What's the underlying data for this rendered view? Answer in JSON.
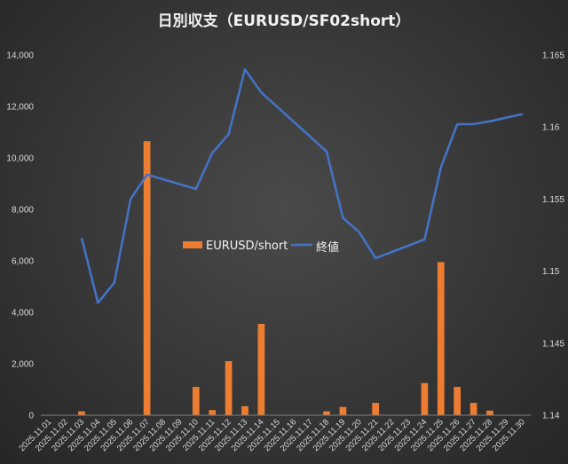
{
  "chart_data": {
    "type": "bar+line",
    "title": "日別収支（EURUSD/SF02short）",
    "categories": [
      "2025.11.01",
      "2025.11.02",
      "2025.11.03",
      "2025.11.04",
      "2025.11.05",
      "2025.11.06",
      "2025.11.07",
      "2025.11.08",
      "2025.11.09",
      "2025.11.10",
      "2025.11.11",
      "2025.11.12",
      "2025.11.13",
      "2025.11.14",
      "2025.11.15",
      "2025.11.16",
      "2025.11.17",
      "2025.11.18",
      "2025.11.19",
      "2025.11.20",
      "2025.11.21",
      "2025.11.22",
      "2025.11.23",
      "2025.11.24",
      "2025.11.25",
      "2025.11.26",
      "2025.11.27",
      "2025.11.28",
      "2025.11.29",
      "2025.11.30"
    ],
    "series": [
      {
        "name": "EURUSD/short",
        "type": "bar",
        "axis": "left",
        "color": "#ed7d31",
        "values": [
          0,
          0,
          150,
          0,
          0,
          0,
          10650,
          0,
          0,
          1100,
          200,
          2100,
          350,
          3550,
          0,
          0,
          0,
          150,
          320,
          0,
          480,
          0,
          0,
          1250,
          5950,
          1100,
          480,
          180,
          0,
          0
        ]
      },
      {
        "name": "終値",
        "type": "line",
        "axis": "right",
        "color": "#4472c4",
        "values": [
          null,
          null,
          1.1523,
          1.1478,
          1.1492,
          1.155,
          1.1567,
          null,
          null,
          1.1557,
          1.1582,
          1.1595,
          1.164,
          1.1624,
          null,
          null,
          null,
          1.1583,
          1.1537,
          1.1527,
          1.1509,
          null,
          null,
          1.1522,
          1.1572,
          1.1602,
          1.1602,
          1.1604,
          null,
          1.1609
        ]
      }
    ],
    "ylim_left": [
      0,
      14000
    ],
    "yticks_left": [
      "0",
      "2,000",
      "4,000",
      "6,000",
      "8,000",
      "10,000",
      "12,000",
      "14,000"
    ],
    "ylim_right": [
      1.14,
      1.165
    ],
    "yticks_right": [
      "1.14",
      "1.145",
      "1.15",
      "1.155",
      "1.16",
      "1.165"
    ],
    "legend_position": "center",
    "grid": false
  }
}
